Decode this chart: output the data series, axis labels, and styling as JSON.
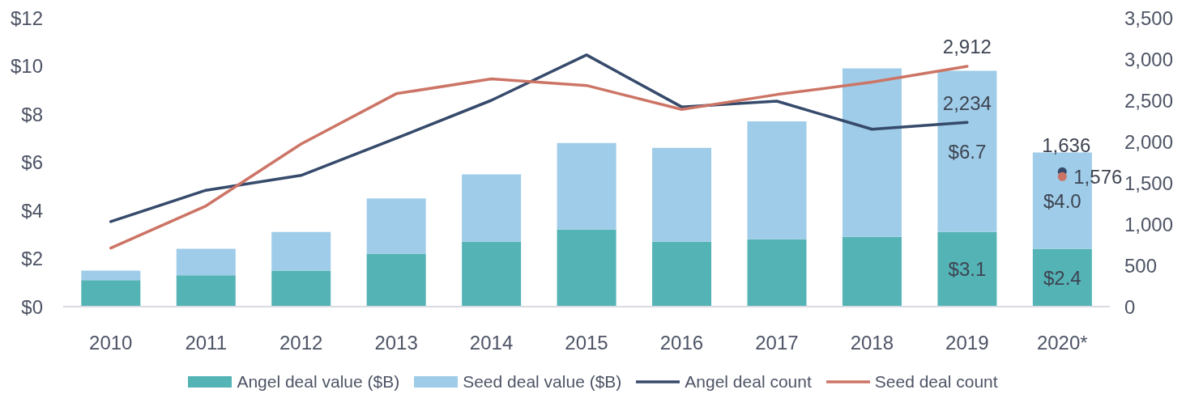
{
  "chart_data": {
    "type": "bar",
    "stacked": true,
    "legend": "bottom",
    "categories": [
      "2010",
      "2011",
      "2012",
      "2013",
      "2014",
      "2015",
      "2016",
      "2017",
      "2018",
      "2019",
      "2020*"
    ],
    "ylim": [
      0,
      12
    ],
    "yticks": [
      {
        "value": 0,
        "label": "$0"
      },
      {
        "value": 2,
        "label": "$2"
      },
      {
        "value": 4,
        "label": "$4"
      },
      {
        "value": 6,
        "label": "$6"
      },
      {
        "value": 8,
        "label": "$8"
      },
      {
        "value": 10,
        "label": "$10"
      },
      {
        "value": 12,
        "label": "$12"
      }
    ],
    "y2lim": [
      0,
      3500
    ],
    "y2ticks": [
      0,
      500,
      {
        "value": 1000,
        "label": "1,000"
      },
      {
        "value": 1500,
        "label": "1,500"
      },
      {
        "value": 2000,
        "label": "2,000"
      },
      {
        "value": 2500,
        "label": "2,500"
      },
      {
        "value": 3000,
        "label": "3,000"
      },
      {
        "value": 3500,
        "label": "3,500"
      }
    ],
    "series": [
      {
        "name": "Angel deal value ($B)",
        "color": "#54b3b5",
        "values": [
          1.1,
          1.3,
          1.5,
          2.2,
          2.7,
          3.2,
          2.7,
          2.8,
          2.9,
          3.1,
          2.4
        ],
        "value_labels": [
          null,
          null,
          null,
          null,
          null,
          null,
          null,
          null,
          null,
          "$3.1",
          "$2.4"
        ]
      },
      {
        "name": "Seed deal value ($B)",
        "color": "#9fcce8",
        "values": [
          0.4,
          1.1,
          1.6,
          2.3,
          2.8,
          3.6,
          3.9,
          4.9,
          7.0,
          6.7,
          4.0
        ],
        "value_labels": [
          null,
          null,
          null,
          null,
          null,
          null,
          null,
          null,
          null,
          "$6.7",
          "$4.0"
        ]
      },
      {
        "name": "Angel deal count",
        "type": "line",
        "axis": "y2",
        "color": "#364a6b",
        "values": [
          1030,
          1410,
          1590,
          2040,
          2500,
          3050,
          2420,
          2490,
          2150,
          2234,
          null
        ],
        "value_labels": [
          null,
          null,
          null,
          null,
          null,
          null,
          null,
          null,
          null,
          "2,234",
          null
        ]
      },
      {
        "name": "Seed deal count",
        "type": "line",
        "axis": "y2",
        "color": "#cc7566",
        "values": [
          710,
          1220,
          1970,
          2580,
          2760,
          2680,
          2390,
          2570,
          2720,
          2912,
          null
        ],
        "value_labels": [
          null,
          null,
          null,
          null,
          null,
          null,
          null,
          null,
          null,
          "2,912",
          null
        ]
      },
      {
        "type": "scatter",
        "axis": "y2",
        "marker": "circle",
        "color": "#364a6b",
        "x": [
          "2020*"
        ],
        "values": [
          1636
        ],
        "value_labels": [
          "1,636"
        ]
      },
      {
        "type": "scatter",
        "axis": "y2",
        "marker": "circle",
        "color": "#cc7566",
        "x": [
          "2020*"
        ],
        "values": [
          1576
        ],
        "value_labels": [
          "1,576"
        ]
      }
    ]
  }
}
